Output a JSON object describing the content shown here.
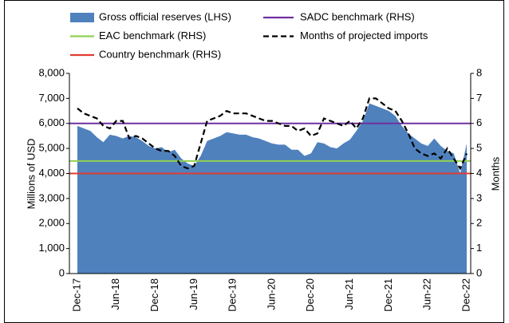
{
  "chart_data": {
    "type": "combo",
    "categories": [
      "Dec-17",
      null,
      null,
      null,
      null,
      null,
      "Jun-18",
      null,
      null,
      null,
      null,
      null,
      "Dec-18",
      null,
      null,
      null,
      null,
      null,
      "Jun-19",
      null,
      null,
      null,
      null,
      null,
      "Dec-19",
      null,
      null,
      null,
      null,
      null,
      "Jun-20",
      null,
      null,
      null,
      null,
      null,
      "Dec-20",
      null,
      null,
      null,
      null,
      null,
      "Jun-21",
      null,
      null,
      null,
      null,
      null,
      "Dec-21",
      null,
      null,
      null,
      null,
      null,
      "Jun-22",
      null,
      null,
      null,
      null,
      null,
      "Dec-22"
    ],
    "y_label": "Millions of USD",
    "y2_label": "Months",
    "ylim": [
      0,
      8000
    ],
    "yticks": [
      0,
      {
        "value": 1000,
        "label": "1,000"
      },
      {
        "value": 2000,
        "label": "2,000"
      },
      {
        "value": 3000,
        "label": "3,000"
      },
      {
        "value": 4000,
        "label": "4,000"
      },
      {
        "value": 5000,
        "label": "5,000"
      },
      {
        "value": 6000,
        "label": "6,000"
      },
      {
        "value": 7000,
        "label": "7,000"
      },
      {
        "value": 8000,
        "label": "8,000"
      }
    ],
    "y2lim": [
      0,
      8
    ],
    "y2ticks": [
      0,
      1,
      2,
      3,
      4,
      5,
      6,
      7,
      8
    ],
    "series": [
      {
        "name": "Gross official reserves (LHS)",
        "type": "area",
        "color": "#4f81bd",
        "values": [
          5900,
          5800,
          5700,
          5450,
          5250,
          5550,
          5500,
          5400,
          5500,
          5450,
          5300,
          5100,
          5000,
          5050,
          4850,
          4950,
          4600,
          4400,
          4300,
          4700,
          5300,
          5400,
          5500,
          5650,
          5600,
          5550,
          5550,
          5450,
          5400,
          5300,
          5200,
          5150,
          5150,
          4950,
          4950,
          4700,
          4800,
          5250,
          5200,
          5050,
          5000,
          5200,
          5350,
          5700,
          6100,
          6800,
          6700,
          6600,
          6500,
          6300,
          5900,
          5600,
          5400,
          5200,
          5100,
          5400,
          5100,
          4900,
          4800,
          4000,
          5200
        ]
      },
      {
        "name": "SADC benchmark (RHS)",
        "type": "hline",
        "color": "#7030a0",
        "axis": "y2",
        "value": 6
      },
      {
        "name": "EAC benchmark (RHS)",
        "type": "hline",
        "color": "#92d050",
        "axis": "y2",
        "value": 4.5
      },
      {
        "name": "Months of projected imports",
        "type": "line",
        "color": "#000000",
        "axis": "y2",
        "dashed": true,
        "values": [
          6.6,
          6.4,
          6.3,
          6.2,
          5.9,
          5.8,
          6.1,
          6.1,
          5.4,
          5.5,
          5.4,
          5.2,
          5.0,
          4.9,
          4.9,
          4.7,
          4.3,
          4.2,
          4.3,
          5.2,
          6.1,
          6.2,
          6.3,
          6.5,
          6.4,
          6.4,
          6.4,
          6.3,
          6.2,
          6.1,
          6.1,
          6.0,
          5.9,
          5.9,
          5.7,
          5.8,
          5.5,
          5.6,
          6.2,
          6.1,
          6.0,
          5.9,
          6.1,
          5.8,
          6.2,
          7.0,
          7.0,
          6.8,
          6.6,
          6.5,
          6.1,
          5.6,
          5.0,
          4.8,
          4.7,
          4.8,
          4.6,
          5.0,
          4.6,
          4.2,
          4.8
        ]
      },
      {
        "name": "Country benchmark (RHS)",
        "type": "hline",
        "color": "#e03c31",
        "axis": "y2",
        "value": 4
      }
    ]
  }
}
